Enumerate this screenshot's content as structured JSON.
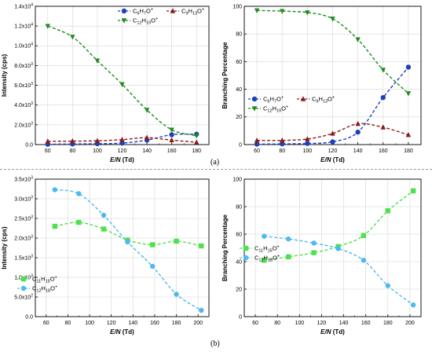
{
  "figure": {
    "label_a": "(a)",
    "label_b": "(b)",
    "colors": {
      "blue": "#1f3fbf",
      "dark_red": "#8b1a1a",
      "green": "#1e8c1e",
      "light_green": "#4ee04e",
      "light_blue": "#4fb8f0",
      "axis": "#000000"
    }
  },
  "chart_data": [
    {
      "type": "line",
      "title": "",
      "xlabel": "E/N (Td)",
      "ylabel": "Intensity (cps)",
      "xlim": [
        50,
        190
      ],
      "ylim": [
        0,
        14000
      ],
      "x_ticks": [
        60,
        80,
        100,
        120,
        140,
        160,
        180
      ],
      "y_ticks": [
        {
          "value": 0,
          "label": "0.0"
        },
        {
          "value": 2000,
          "label": "2.0x10^3"
        },
        {
          "value": 4000,
          "label": "4.0x10^3"
        },
        {
          "value": 6000,
          "label": "6.0x10^3"
        },
        {
          "value": 8000,
          "label": "8.0x10^3"
        },
        {
          "value": 10000,
          "label": "1.0x10^4"
        },
        {
          "value": 12000,
          "label": "1.2x10^4"
        },
        {
          "value": 14000,
          "label": "1.4x10^4"
        }
      ],
      "grid": true,
      "legend": "top-right",
      "series": [
        {
          "name": "C6H7O+",
          "base": "C",
          "sub1": "6",
          "mid": "H",
          "sub2": "7",
          "tail": "O",
          "marker": "circle",
          "color": "#1f3fbf",
          "x": [
            60,
            80,
            100,
            120,
            140,
            160,
            180
          ],
          "values": [
            30,
            60,
            90,
            150,
            450,
            1000,
            1050
          ]
        },
        {
          "name": "C9H13O+",
          "base": "C",
          "sub1": "9",
          "mid": "H",
          "sub2": "13",
          "tail": "O",
          "marker": "triangle-up",
          "color": "#8b1a1a",
          "x": [
            60,
            80,
            100,
            120,
            140,
            160,
            180
          ],
          "values": [
            330,
            350,
            380,
            500,
            700,
            450,
            230
          ]
        },
        {
          "name": "C12H19O+",
          "base": "C",
          "sub1": "12",
          "mid": "H",
          "sub2": "19",
          "tail": "O",
          "marker": "triangle-down",
          "color": "#1e8c1e",
          "x": [
            60,
            80,
            100,
            120,
            140,
            160,
            180
          ],
          "values": [
            12000,
            10900,
            8500,
            6100,
            3500,
            1500,
            900
          ]
        }
      ]
    },
    {
      "type": "line",
      "title": "",
      "xlabel": "E/N (Td)",
      "ylabel": "Branching Percentage",
      "xlim": [
        50,
        190
      ],
      "ylim": [
        0,
        100
      ],
      "x_ticks": [
        60,
        80,
        100,
        120,
        140,
        160,
        180
      ],
      "y_ticks": [
        {
          "value": 0,
          "label": "0"
        },
        {
          "value": 20,
          "label": "20"
        },
        {
          "value": 40,
          "label": "40"
        },
        {
          "value": 60,
          "label": "60"
        },
        {
          "value": 80,
          "label": "80"
        },
        {
          "value": 100,
          "label": "100"
        }
      ],
      "grid": true,
      "legend": "center-left",
      "series": [
        {
          "name": "C6H7O+",
          "base": "C",
          "sub1": "6",
          "mid": "H",
          "sub2": "7",
          "tail": "O",
          "marker": "circle",
          "color": "#1f3fbf",
          "x": [
            60,
            80,
            100,
            120,
            140,
            160,
            180
          ],
          "values": [
            0.3,
            0.5,
            0.8,
            2,
            9,
            34,
            56
          ]
        },
        {
          "name": "C9H13O+",
          "base": "C",
          "sub1": "9",
          "mid": "H",
          "sub2": "13",
          "tail": "O",
          "marker": "triangle-up",
          "color": "#8b1a1a",
          "x": [
            60,
            80,
            100,
            120,
            140,
            160,
            180
          ],
          "values": [
            3,
            3,
            4,
            8,
            15,
            12.5,
            7
          ]
        },
        {
          "name": "C12H19O+",
          "base": "C",
          "sub1": "12",
          "mid": "H",
          "sub2": "19",
          "tail": "O",
          "marker": "triangle-down",
          "color": "#1e8c1e",
          "x": [
            60,
            80,
            100,
            120,
            140,
            160,
            180
          ],
          "values": [
            97,
            96.5,
            95.5,
            91,
            76,
            54,
            37
          ]
        }
      ]
    },
    {
      "type": "line",
      "title": "",
      "xlabel": "E/N (Td)",
      "ylabel": "Intensity (cps)",
      "xlim": [
        50,
        210
      ],
      "ylim": [
        0,
        3500
      ],
      "x_ticks": [
        60,
        80,
        100,
        120,
        140,
        160,
        180,
        200
      ],
      "y_ticks": [
        {
          "value": 0,
          "label": "0.0"
        },
        {
          "value": 500,
          "label": "5.0x10^2"
        },
        {
          "value": 1000,
          "label": "1.0x10^3"
        },
        {
          "value": 1500,
          "label": "1.5x10^3"
        },
        {
          "value": 2000,
          "label": "2.0x10^3"
        },
        {
          "value": 2500,
          "label": "2.5x10^3"
        },
        {
          "value": 3000,
          "label": "3.0x10^3"
        },
        {
          "value": 3500,
          "label": "3.5x10^3"
        }
      ],
      "grid": true,
      "legend": "bottom-left",
      "series": [
        {
          "name": "C11H15O+",
          "base": "C",
          "sub1": "11",
          "mid": "H",
          "sub2": "15",
          "tail": "O",
          "marker": "square",
          "color": "#4ee04e",
          "x": [
            68,
            90,
            113,
            135,
            158,
            180,
            203
          ],
          "values": [
            2300,
            2400,
            2230,
            1950,
            1830,
            1920,
            1800
          ]
        },
        {
          "name": "C12H18O+",
          "base": "C",
          "sub1": "12",
          "mid": "H",
          "sub2": "18",
          "tail": "O",
          "marker": "circle",
          "color": "#4fb8f0",
          "x": [
            68,
            90,
            113,
            135,
            158,
            180,
            203
          ],
          "values": [
            3230,
            3130,
            2580,
            1900,
            1280,
            570,
            160
          ]
        }
      ]
    },
    {
      "type": "line",
      "title": "",
      "xlabel": "E/N (Td)",
      "ylabel": "Branching Percentage",
      "xlim": [
        50,
        210
      ],
      "ylim": [
        0,
        100
      ],
      "x_ticks": [
        60,
        80,
        100,
        120,
        140,
        160,
        180,
        200
      ],
      "y_ticks": [
        {
          "value": 0,
          "label": "0"
        },
        {
          "value": 20,
          "label": "20"
        },
        {
          "value": 40,
          "label": "40"
        },
        {
          "value": 60,
          "label": "60"
        },
        {
          "value": 80,
          "label": "80"
        },
        {
          "value": 100,
          "label": "100"
        }
      ],
      "grid": true,
      "legend": "center-left",
      "series": [
        {
          "name": "C11H15O+",
          "base": "C",
          "sub1": "11",
          "mid": "H",
          "sub2": "15",
          "tail": "O",
          "marker": "square",
          "color": "#4ee04e",
          "x": [
            68,
            90,
            113,
            135,
            158,
            180,
            203
          ],
          "values": [
            41,
            43.5,
            46.5,
            51,
            59,
            77,
            91.5
          ]
        },
        {
          "name": "C12H18O+",
          "base": "C",
          "sub1": "12",
          "mid": "H",
          "sub2": "18",
          "tail": "O",
          "marker": "circle",
          "color": "#4fb8f0",
          "x": [
            68,
            90,
            113,
            135,
            158,
            180,
            203
          ],
          "values": [
            58.5,
            56.5,
            53.5,
            49.5,
            41,
            22.5,
            8.5
          ]
        }
      ]
    }
  ]
}
